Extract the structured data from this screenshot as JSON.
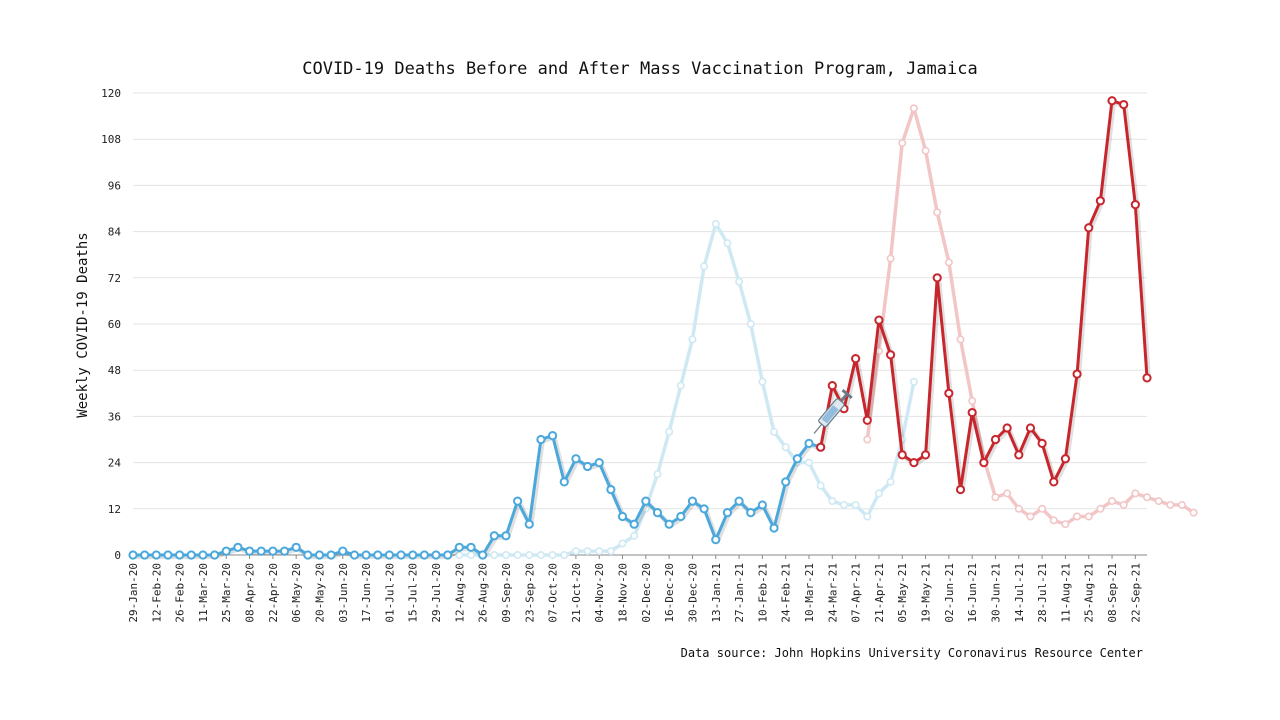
{
  "chart_data": {
    "type": "line",
    "title": "COVID-19 Deaths Before and After Mass Vaccination Program, Jamaica",
    "ylabel": "Weekly COVID-19 Deaths",
    "xlabel": "",
    "ylim": [
      0,
      120
    ],
    "yticks": [
      0,
      12,
      24,
      36,
      48,
      60,
      72,
      84,
      96,
      108,
      120
    ],
    "grid": true,
    "xtick_labels": [
      "29-Jan-20",
      "12-Feb-20",
      "26-Feb-20",
      "11-Mar-20",
      "25-Mar-20",
      "08-Apr-20",
      "22-Apr-20",
      "06-May-20",
      "20-May-20",
      "03-Jun-20",
      "17-Jun-20",
      "01-Jul-20",
      "15-Jul-20",
      "29-Jul-20",
      "12-Aug-20",
      "26-Aug-20",
      "09-Sep-20",
      "23-Sep-20",
      "07-Oct-20",
      "21-Oct-20",
      "04-Nov-20",
      "18-Nov-20",
      "02-Dec-20",
      "16-Dec-20",
      "30-Dec-20",
      "13-Jan-21",
      "27-Jan-21",
      "10-Feb-21",
      "24-Feb-21",
      "10-Mar-21",
      "24-Mar-21",
      "07-Apr-21",
      "21-Apr-21",
      "05-May-21",
      "19-May-21",
      "02-Jun-21",
      "16-Jun-21",
      "30-Jun-21",
      "14-Jul-21",
      "28-Jul-21",
      "11-Aug-21",
      "25-Aug-21",
      "08-Sep-21",
      "22-Sep-21"
    ],
    "series": [
      {
        "role": "before",
        "color": "#4ba8dc",
        "start_week": 0,
        "values": [
          0,
          0,
          0,
          0,
          0,
          0,
          0,
          0,
          1,
          2,
          1,
          1,
          1,
          1,
          2,
          0,
          0,
          0,
          1,
          0,
          0,
          0,
          0,
          0,
          0,
          0,
          0,
          0,
          2,
          2,
          0,
          5,
          5,
          14,
          8,
          30,
          31,
          19,
          25,
          23,
          24,
          17,
          10,
          8,
          14,
          11,
          8,
          10,
          14,
          12,
          4,
          11,
          14,
          11,
          13,
          7,
          19,
          25,
          29,
          28
        ]
      },
      {
        "role": "after",
        "color": "#c8262d",
        "start_week": 59,
        "values": [
          28,
          44,
          38,
          51,
          35,
          61,
          52,
          26,
          24,
          26,
          72,
          42,
          17,
          37,
          24,
          30,
          33,
          26,
          33,
          29,
          19,
          25,
          47,
          85,
          92,
          118,
          117,
          91,
          46
        ]
      },
      {
        "role": "before-ghost",
        "color": "#cfe9f4",
        "start_week": 28,
        "values": [
          0,
          0,
          0,
          0,
          0,
          0,
          0,
          0,
          0,
          0,
          1,
          1,
          1,
          1,
          3,
          5,
          12,
          21,
          32,
          44,
          56,
          75,
          86,
          81,
          71,
          60,
          45,
          32,
          28,
          24,
          24,
          18,
          14,
          13,
          13,
          10,
          16,
          19,
          30,
          45
        ]
      },
      {
        "role": "after-ghost",
        "color": "#f2c6c6",
        "start_week": 63,
        "values": [
          30,
          53,
          77,
          107,
          116,
          105,
          89,
          76,
          56,
          40,
          25,
          15,
          16,
          12,
          10,
          12,
          9,
          8,
          10,
          10,
          12,
          14,
          13,
          16,
          15,
          14,
          13,
          13,
          11
        ]
      }
    ]
  },
  "source_text": "Data source: John Hopkins University Coronavirus Resource Center",
  "icon": "syringe-icon"
}
